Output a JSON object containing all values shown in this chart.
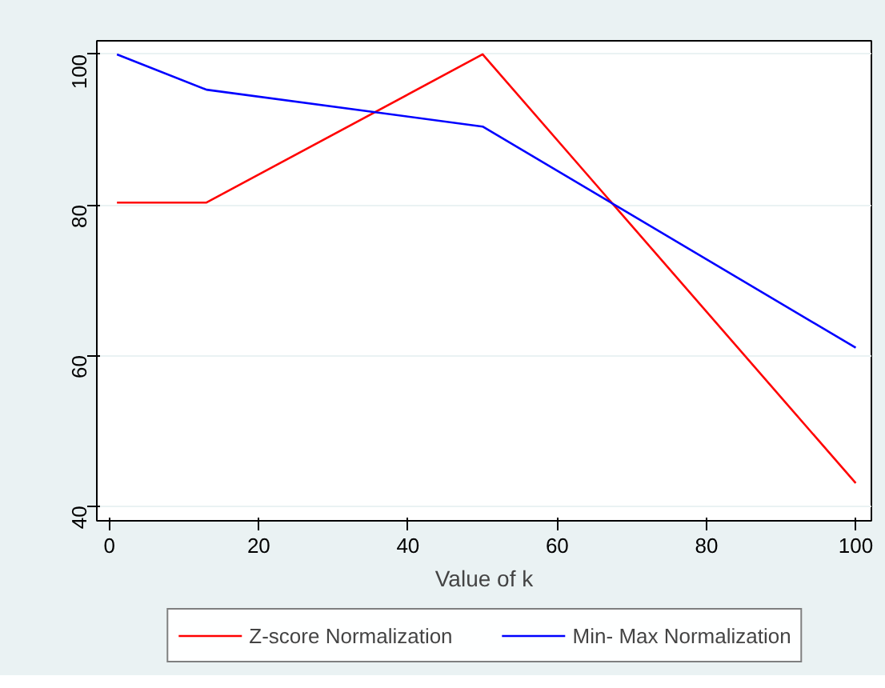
{
  "chart_data": {
    "type": "line",
    "xlabel": "Value of k",
    "x": [
      1,
      13,
      50,
      100
    ],
    "series": [
      {
        "name": "Z-score Normalization",
        "color": "#ff0000",
        "values": [
          80.3,
          80.3,
          100,
          43
        ]
      },
      {
        "name": "Min- Max Normalization",
        "color": "#0000ff",
        "values": [
          100,
          95.3,
          90.4,
          61
        ]
      }
    ],
    "xlim": [
      -1.7,
      102.1
    ],
    "ylim": [
      38,
      101.8
    ],
    "xticks": [
      0,
      20,
      40,
      60,
      80,
      100
    ],
    "yticks": [
      40,
      60,
      80,
      100
    ],
    "grid": "y",
    "legend": "bottom",
    "line_style": "solid",
    "marker": "none"
  }
}
